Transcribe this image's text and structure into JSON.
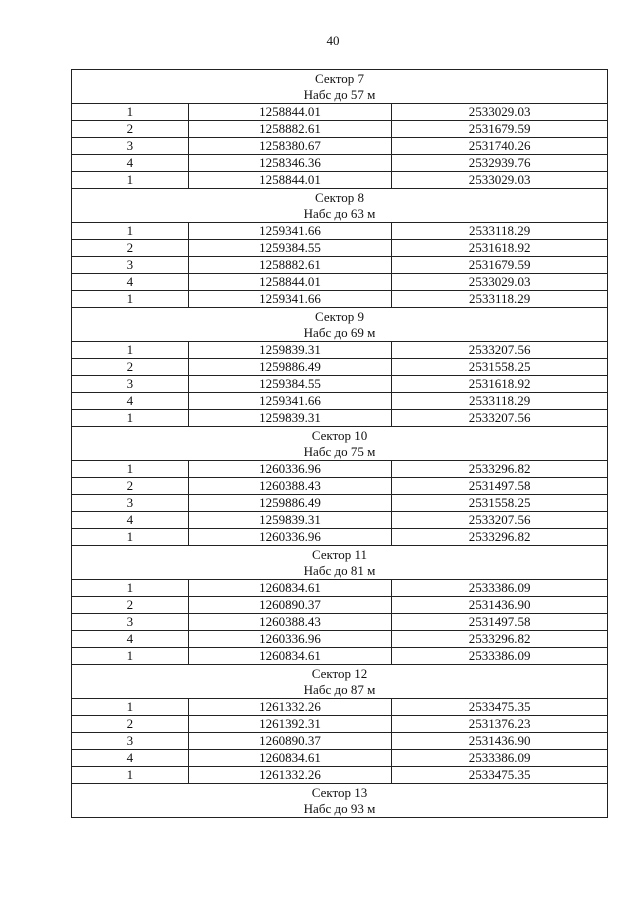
{
  "page_number": "40",
  "sectors": [
    {
      "title": "Сектор 7",
      "subtitle": "Набс до 57 м",
      "rows": [
        [
          "1",
          "1258844.01",
          "2533029.03"
        ],
        [
          "2",
          "1258882.61",
          "2531679.59"
        ],
        [
          "3",
          "1258380.67",
          "2531740.26"
        ],
        [
          "4",
          "1258346.36",
          "2532939.76"
        ],
        [
          "1",
          "1258844.01",
          "2533029.03"
        ]
      ]
    },
    {
      "title": "Сектор 8",
      "subtitle": "Набс до 63 м",
      "rows": [
        [
          "1",
          "1259341.66",
          "2533118.29"
        ],
        [
          "2",
          "1259384.55",
          "2531618.92"
        ],
        [
          "3",
          "1258882.61",
          "2531679.59"
        ],
        [
          "4",
          "1258844.01",
          "2533029.03"
        ],
        [
          "1",
          "1259341.66",
          "2533118.29"
        ]
      ]
    },
    {
      "title": "Сектор 9",
      "subtitle": "Набс до 69 м",
      "rows": [
        [
          "1",
          "1259839.31",
          "2533207.56"
        ],
        [
          "2",
          "1259886.49",
          "2531558.25"
        ],
        [
          "3",
          "1259384.55",
          "2531618.92"
        ],
        [
          "4",
          "1259341.66",
          "2533118.29"
        ],
        [
          "1",
          "1259839.31",
          "2533207.56"
        ]
      ]
    },
    {
      "title": "Сектор 10",
      "subtitle": "Набс до 75 м",
      "rows": [
        [
          "1",
          "1260336.96",
          "2533296.82"
        ],
        [
          "2",
          "1260388.43",
          "2531497.58"
        ],
        [
          "3",
          "1259886.49",
          "2531558.25"
        ],
        [
          "4",
          "1259839.31",
          "2533207.56"
        ],
        [
          "1",
          "1260336.96",
          "2533296.82"
        ]
      ]
    },
    {
      "title": "Сектор 11",
      "subtitle": "Набс до 81 м",
      "rows": [
        [
          "1",
          "1260834.61",
          "2533386.09"
        ],
        [
          "2",
          "1260890.37",
          "2531436.90"
        ],
        [
          "3",
          "1260388.43",
          "2531497.58"
        ],
        [
          "4",
          "1260336.96",
          "2533296.82"
        ],
        [
          "1",
          "1260834.61",
          "2533386.09"
        ]
      ]
    },
    {
      "title": "Сектор 12",
      "subtitle": "Набс до 87 м",
      "rows": [
        [
          "1",
          "1261332.26",
          "2533475.35"
        ],
        [
          "2",
          "1261392.31",
          "2531376.23"
        ],
        [
          "3",
          "1260890.37",
          "2531436.90"
        ],
        [
          "4",
          "1260834.61",
          "2533386.09"
        ],
        [
          "1",
          "1261332.26",
          "2533475.35"
        ]
      ]
    },
    {
      "title": "Сектор 13",
      "subtitle": "Набс до 93 м",
      "rows": []
    }
  ]
}
